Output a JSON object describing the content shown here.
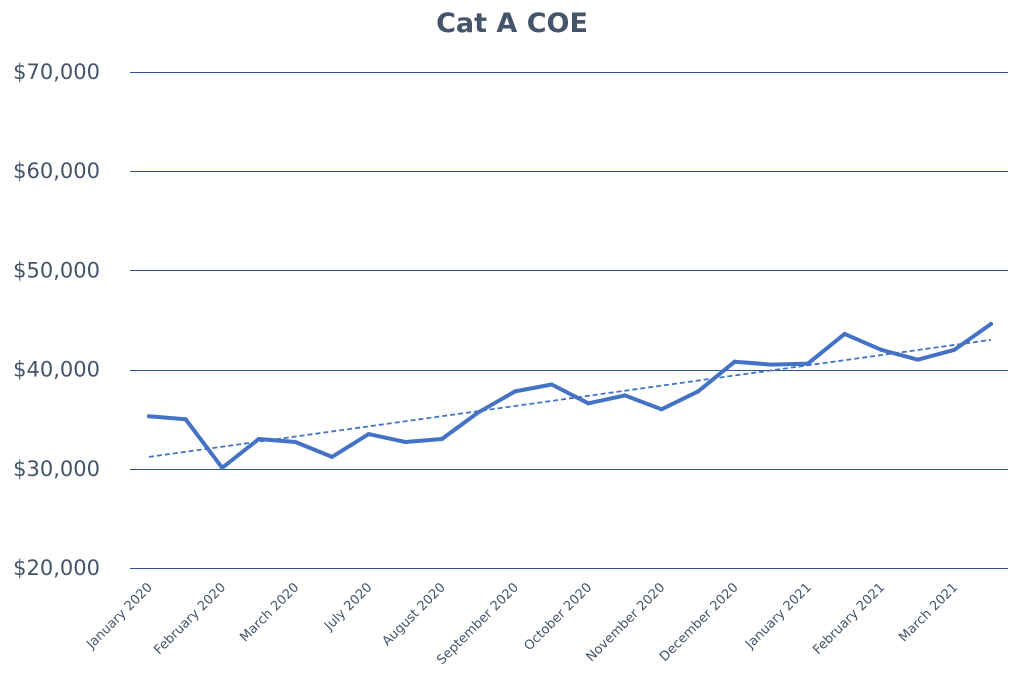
{
  "chart_data": {
    "type": "line",
    "title": "Cat A COE",
    "xlabel": "",
    "ylabel": "",
    "ylim": [
      20000,
      70000
    ],
    "y_ticks": [
      "$20,000",
      "$30,000",
      "$40,000",
      "$50,000",
      "$60,000",
      "$70,000"
    ],
    "y_tick_values": [
      20000,
      30000,
      40000,
      50000,
      60000,
      70000
    ],
    "grid": true,
    "legend": "none",
    "x_tick_labels": [
      "January 2020",
      "February 2020",
      "March 2020",
      "July 2020",
      "August 2020",
      "September 2020",
      "October 2020",
      "November 2020",
      "December 2020",
      "January 2021",
      "February 2021",
      "March 2021"
    ],
    "series": [
      {
        "values": [
          35300,
          35000,
          30100,
          33000,
          32700,
          31200,
          33500,
          32700,
          33000,
          35700,
          37800,
          38500,
          36600,
          37400,
          36000,
          37800,
          40800,
          40500,
          40600,
          43600,
          42000,
          41000,
          42000,
          44600
        ]
      }
    ],
    "trendline": {
      "type": "linear",
      "style": "dashed",
      "start": 31200,
      "end": 43000
    },
    "colors": {
      "series": "#4472c4",
      "grid": "#2f5597",
      "text": "#44546a"
    }
  }
}
